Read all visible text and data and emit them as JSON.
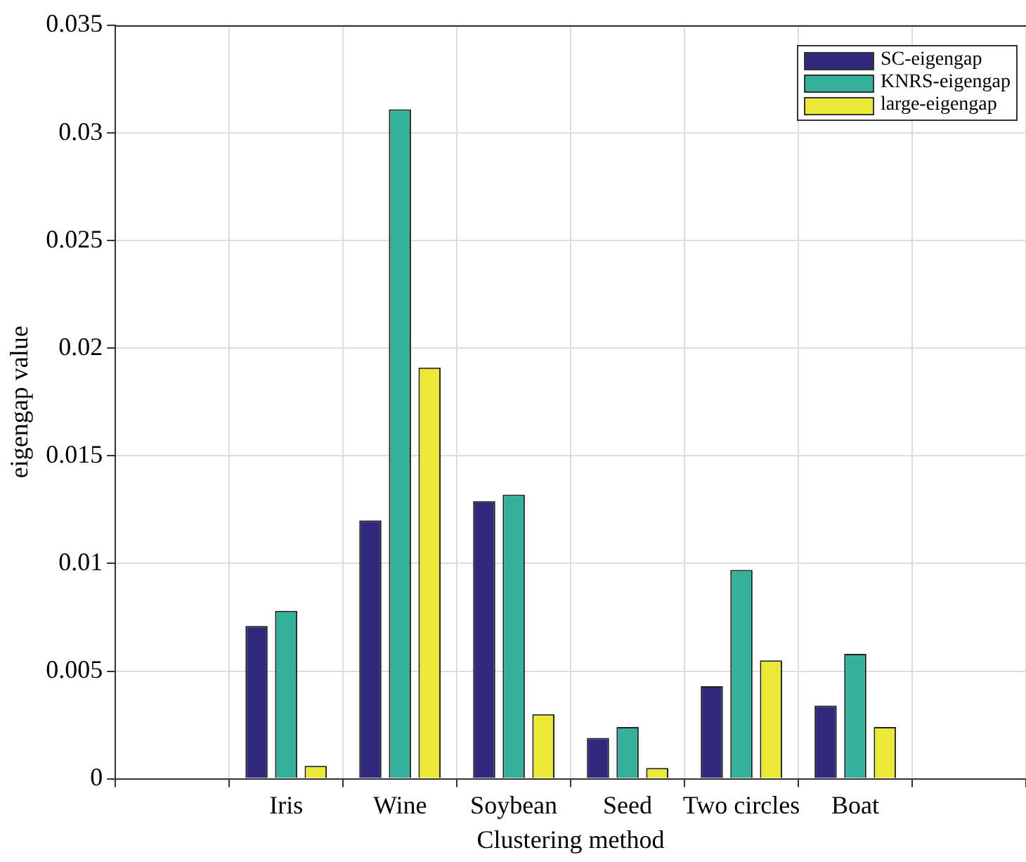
{
  "chart_data": {
    "type": "bar",
    "xlabel": "Clustering method",
    "ylabel": "eigengap value",
    "categories": [
      null,
      "Iris",
      "Wine",
      "Soybean",
      "Seed",
      "Two circles",
      "Boat",
      null
    ],
    "series": [
      {
        "name": "SC-eigengap",
        "color": "#2f297c",
        "values": [
          null,
          0.0071,
          0.012,
          0.0129,
          0.0019,
          0.0043,
          0.0034,
          null
        ]
      },
      {
        "name": "KNRS-eigengap",
        "color": "#35b09a",
        "values": [
          null,
          0.0078,
          0.0311,
          0.0132,
          0.0024,
          0.0097,
          0.0058,
          null
        ]
      },
      {
        "name": "large-eigengap",
        "color": "#ebe935",
        "values": [
          null,
          0.0006,
          0.0191,
          0.003,
          0.0005,
          0.0055,
          0.0024,
          null
        ]
      }
    ],
    "ylim": [
      0,
      0.035
    ],
    "yticks": [
      0,
      0.005,
      0.01,
      0.015,
      0.02,
      0.025,
      0.03,
      0.035
    ],
    "grid": true,
    "legend": "top right"
  }
}
